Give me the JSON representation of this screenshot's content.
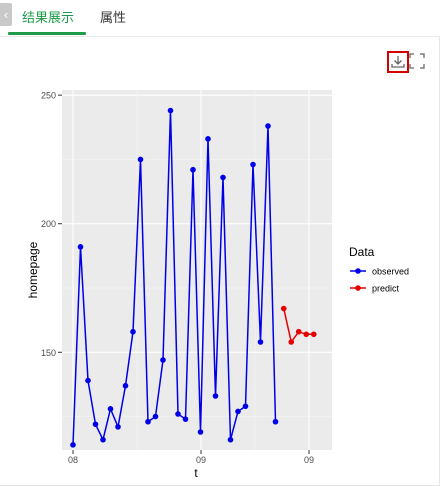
{
  "tabs": [
    {
      "label": "结果展示",
      "active": true
    },
    {
      "label": "属性",
      "active": false
    }
  ],
  "collapse_icon": "chevron-left-icon",
  "toolbar": {
    "download_icon": "download-icon",
    "fullscreen_icon": "fullscreen-icon",
    "download_highlight_color": "#d40000"
  },
  "colors": {
    "accent": "#1f9c4a",
    "panel_bg": "#ebebeb",
    "observed": "#0000e6",
    "predict": "#e60000"
  },
  "chart_data": {
    "type": "line",
    "xlabel": "t",
    "ylabel": "homepage",
    "x_ticks": [
      "08",
      "09",
      "09"
    ],
    "y_ticks": [
      150,
      200,
      250
    ],
    "ylim": [
      112,
      252
    ],
    "grid": true,
    "legend": {
      "title": "Data",
      "placement": "right"
    },
    "series": [
      {
        "name": "observed",
        "color": "#0000e6",
        "values": [
          114,
          191,
          139,
          122,
          116,
          128,
          121,
          137,
          158,
          225,
          123,
          125,
          147,
          244,
          126,
          124,
          221,
          119,
          233,
          133,
          218,
          116,
          127,
          129,
          223,
          154,
          238,
          123
        ]
      },
      {
        "name": "predict",
        "color": "#e60000",
        "values": [
          167,
          154,
          158,
          157,
          157
        ]
      }
    ]
  }
}
